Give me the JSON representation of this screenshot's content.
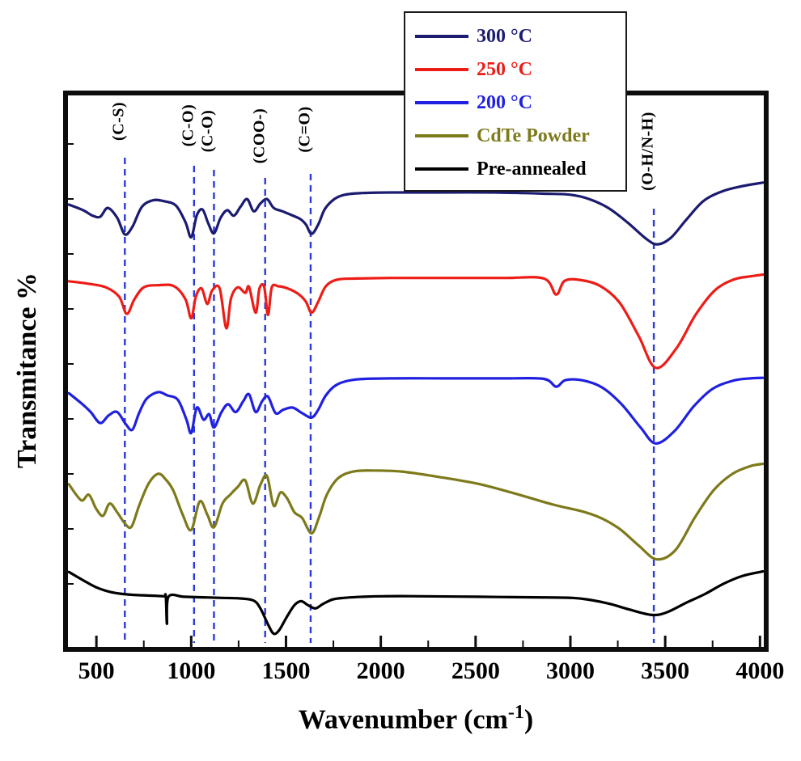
{
  "figure": {
    "y_axis_label": "Transmitance %",
    "x_axis_label": {
      "prefix": "Wavenumber (cm",
      "superscript": "-1",
      "suffix": ")"
    }
  },
  "legend": {
    "items": [
      {
        "label": "300 °C",
        "color": "#1b1b70"
      },
      {
        "label": "250 °C",
        "color": "#ed1c16"
      },
      {
        "label": "200 °C",
        "color": "#2020e0"
      },
      {
        "label": "CdTe Powder",
        "color": "#7d7a1c"
      },
      {
        "label": "Pre-annealed",
        "color": "#000000"
      }
    ]
  },
  "chart_data": {
    "type": "line",
    "title": "",
    "xlabel": "Wavenumber (cm-1)",
    "ylabel": "Transmitance %",
    "xlim": [
      350,
      4020
    ],
    "x_ticks": [
      500,
      1000,
      1500,
      2000,
      2500,
      3000,
      3500,
      4000
    ],
    "x_minor_ticks": [
      750,
      1250,
      1750,
      2250,
      2750,
      3250,
      3750
    ],
    "grid": false,
    "legend_position": "top-center",
    "guide_color": "#2a3ada",
    "frame_color": "#0d0d0d",
    "annotations": [
      {
        "text": "(C-S)",
        "wavenumber": 650,
        "label_center_y": 32,
        "line_top": 77
      },
      {
        "text": "(C-O)",
        "wavenumber": 1015,
        "label_center_y": 37,
        "line_top": 87
      },
      {
        "text": "(C-O)",
        "wavenumber": 1120,
        "label_center_y": 44,
        "line_top": 92
      },
      {
        "text": "(COO-)",
        "wavenumber": 1390,
        "label_center_y": 50,
        "line_top": 102
      },
      {
        "text": "(C=O)",
        "wavenumber": 1630,
        "label_center_y": 42,
        "line_top": 97
      },
      {
        "text": "(O-H/N-H)",
        "wavenumber": 3440,
        "label_center_y": 69,
        "line_top": 140
      }
    ],
    "series": [
      {
        "name": "300 °C",
        "color": "#1b1b70",
        "points": [
          [
            355,
            80.2
          ],
          [
            430,
            79.2
          ],
          [
            480,
            78.2
          ],
          [
            520,
            78.0
          ],
          [
            560,
            79.6
          ],
          [
            610,
            77.8
          ],
          [
            650,
            74.8
          ],
          [
            690,
            76.2
          ],
          [
            740,
            79.8
          ],
          [
            800,
            81.0
          ],
          [
            860,
            80.8
          ],
          [
            920,
            80.0
          ],
          [
            970,
            77.0
          ],
          [
            1000,
            74.3
          ],
          [
            1030,
            78.3
          ],
          [
            1060,
            79.3
          ],
          [
            1090,
            76.8
          ],
          [
            1120,
            75.0
          ],
          [
            1155,
            77.8
          ],
          [
            1190,
            79.2
          ],
          [
            1225,
            78.2
          ],
          [
            1260,
            79.8
          ],
          [
            1295,
            81.2
          ],
          [
            1330,
            79.0
          ],
          [
            1365,
            80.4
          ],
          [
            1400,
            81.2
          ],
          [
            1435,
            79.6
          ],
          [
            1480,
            79.0
          ],
          [
            1530,
            78.3
          ],
          [
            1575,
            77.6
          ],
          [
            1605,
            76.6
          ],
          [
            1635,
            74.9
          ],
          [
            1670,
            76.6
          ],
          [
            1705,
            79.4
          ],
          [
            1755,
            81.2
          ],
          [
            1810,
            82.0
          ],
          [
            1900,
            82.3
          ],
          [
            2050,
            82.4
          ],
          [
            2300,
            82.4
          ],
          [
            2600,
            82.4
          ],
          [
            2850,
            82.2
          ],
          [
            3000,
            82.0
          ],
          [
            3100,
            81.2
          ],
          [
            3200,
            79.6
          ],
          [
            3300,
            77.0
          ],
          [
            3400,
            74.0
          ],
          [
            3460,
            73.0
          ],
          [
            3530,
            74.2
          ],
          [
            3610,
            77.4
          ],
          [
            3700,
            80.8
          ],
          [
            3800,
            82.6
          ],
          [
            3900,
            83.5
          ],
          [
            4015,
            84.2
          ]
        ]
      },
      {
        "name": "250 °C",
        "color": "#ed1c16",
        "points": [
          [
            355,
            66.3
          ],
          [
            450,
            65.9
          ],
          [
            550,
            65.2
          ],
          [
            620,
            63.5
          ],
          [
            660,
            60.4
          ],
          [
            700,
            63.0
          ],
          [
            750,
            65.2
          ],
          [
            830,
            65.6
          ],
          [
            910,
            65.4
          ],
          [
            970,
            63.0
          ],
          [
            1000,
            59.6
          ],
          [
            1025,
            63.6
          ],
          [
            1055,
            65.0
          ],
          [
            1085,
            62.2
          ],
          [
            1110,
            64.6
          ],
          [
            1150,
            65.0
          ],
          [
            1185,
            57.8
          ],
          [
            1210,
            63.2
          ],
          [
            1245,
            65.2
          ],
          [
            1285,
            64.2
          ],
          [
            1305,
            65.3
          ],
          [
            1340,
            60.6
          ],
          [
            1360,
            65.0
          ],
          [
            1385,
            65.3
          ],
          [
            1405,
            60.2
          ],
          [
            1425,
            65.2
          ],
          [
            1460,
            65.4
          ],
          [
            1510,
            65.0
          ],
          [
            1565,
            64.0
          ],
          [
            1605,
            62.6
          ],
          [
            1635,
            60.6
          ],
          [
            1670,
            62.6
          ],
          [
            1710,
            65.4
          ],
          [
            1770,
            66.6
          ],
          [
            1870,
            66.8
          ],
          [
            2050,
            66.9
          ],
          [
            2350,
            66.9
          ],
          [
            2650,
            66.9
          ],
          [
            2860,
            66.8
          ],
          [
            2925,
            63.9
          ],
          [
            2970,
            66.4
          ],
          [
            3060,
            66.5
          ],
          [
            3160,
            65.4
          ],
          [
            3260,
            62.4
          ],
          [
            3360,
            56.4
          ],
          [
            3450,
            50.6
          ],
          [
            3560,
            54.2
          ],
          [
            3660,
            60.2
          ],
          [
            3760,
            64.6
          ],
          [
            3860,
            66.6
          ],
          [
            3950,
            67.2
          ],
          [
            4015,
            67.5
          ]
        ]
      },
      {
        "name": "200 °C",
        "color": "#2020e0",
        "points": [
          [
            355,
            46.0
          ],
          [
            420,
            44.2
          ],
          [
            470,
            42.6
          ],
          [
            520,
            40.6
          ],
          [
            565,
            42.0
          ],
          [
            610,
            42.6
          ],
          [
            655,
            40.4
          ],
          [
            690,
            39.4
          ],
          [
            725,
            42.4
          ],
          [
            765,
            45.0
          ],
          [
            825,
            46.2
          ],
          [
            875,
            45.6
          ],
          [
            930,
            44.8
          ],
          [
            975,
            41.2
          ],
          [
            1000,
            38.8
          ],
          [
            1030,
            43.4
          ],
          [
            1065,
            41.2
          ],
          [
            1095,
            42.2
          ],
          [
            1120,
            39.8
          ],
          [
            1160,
            42.6
          ],
          [
            1195,
            44.0
          ],
          [
            1235,
            42.6
          ],
          [
            1275,
            44.6
          ],
          [
            1305,
            45.8
          ],
          [
            1340,
            42.6
          ],
          [
            1375,
            44.6
          ],
          [
            1405,
            45.4
          ],
          [
            1445,
            42.4
          ],
          [
            1485,
            43.0
          ],
          [
            1535,
            43.4
          ],
          [
            1585,
            42.4
          ],
          [
            1635,
            41.6
          ],
          [
            1670,
            43.0
          ],
          [
            1710,
            45.6
          ],
          [
            1770,
            47.6
          ],
          [
            1870,
            48.5
          ],
          [
            2050,
            48.7
          ],
          [
            2350,
            48.7
          ],
          [
            2650,
            48.7
          ],
          [
            2860,
            48.6
          ],
          [
            2925,
            47.2
          ],
          [
            2975,
            48.4
          ],
          [
            3070,
            48.3
          ],
          [
            3170,
            47.0
          ],
          [
            3270,
            44.0
          ],
          [
            3370,
            39.8
          ],
          [
            3450,
            36.9
          ],
          [
            3550,
            39.2
          ],
          [
            3650,
            43.6
          ],
          [
            3750,
            46.8
          ],
          [
            3860,
            48.3
          ],
          [
            3950,
            48.7
          ],
          [
            4015,
            48.8
          ]
        ]
      },
      {
        "name": "CdTe Powder",
        "color": "#7d7a1c",
        "points": [
          [
            355,
            29.5
          ],
          [
            420,
            26.6
          ],
          [
            460,
            27.6
          ],
          [
            500,
            25.0
          ],
          [
            535,
            23.8
          ],
          [
            570,
            26.0
          ],
          [
            610,
            24.4
          ],
          [
            650,
            22.4
          ],
          [
            685,
            21.8
          ],
          [
            725,
            25.6
          ],
          [
            775,
            29.6
          ],
          [
            825,
            31.4
          ],
          [
            865,
            30.4
          ],
          [
            905,
            28.4
          ],
          [
            955,
            24.0
          ],
          [
            1000,
            21.2
          ],
          [
            1045,
            26.4
          ],
          [
            1085,
            24.0
          ],
          [
            1120,
            21.7
          ],
          [
            1165,
            26.0
          ],
          [
            1205,
            27.6
          ],
          [
            1245,
            29.0
          ],
          [
            1285,
            30.2
          ],
          [
            1325,
            26.0
          ],
          [
            1365,
            29.4
          ],
          [
            1400,
            31.0
          ],
          [
            1435,
            25.6
          ],
          [
            1470,
            28.0
          ],
          [
            1505,
            27.0
          ],
          [
            1545,
            24.4
          ],
          [
            1585,
            23.4
          ],
          [
            1635,
            20.6
          ],
          [
            1675,
            23.6
          ],
          [
            1715,
            27.6
          ],
          [
            1775,
            30.6
          ],
          [
            1855,
            31.8
          ],
          [
            1960,
            32.0
          ],
          [
            2110,
            31.8
          ],
          [
            2310,
            30.8
          ],
          [
            2510,
            29.6
          ],
          [
            2710,
            27.8
          ],
          [
            2910,
            25.8
          ],
          [
            3060,
            24.6
          ],
          [
            3160,
            23.4
          ],
          [
            3260,
            21.4
          ],
          [
            3360,
            18.4
          ],
          [
            3455,
            15.9
          ],
          [
            3555,
            17.6
          ],
          [
            3655,
            23.4
          ],
          [
            3755,
            28.4
          ],
          [
            3855,
            31.4
          ],
          [
            3950,
            32.8
          ],
          [
            4015,
            33.2
          ]
        ]
      },
      {
        "name": "Pre-annealed",
        "color": "#000000",
        "points": [
          [
            355,
            13.6
          ],
          [
            430,
            12.1
          ],
          [
            500,
            10.8
          ],
          [
            570,
            10.0
          ],
          [
            640,
            9.6
          ],
          [
            720,
            9.4
          ],
          [
            800,
            9.3
          ],
          [
            855,
            9.2
          ],
          [
            866,
            9.2
          ],
          [
            872,
            4.2
          ],
          [
            880,
            9.1
          ],
          [
            960,
            9.1
          ],
          [
            1060,
            9.0
          ],
          [
            1160,
            8.9
          ],
          [
            1260,
            8.8
          ],
          [
            1330,
            8.4
          ],
          [
            1365,
            7.0
          ],
          [
            1405,
            4.1
          ],
          [
            1435,
            2.4
          ],
          [
            1465,
            3.1
          ],
          [
            1505,
            5.5
          ],
          [
            1545,
            7.6
          ],
          [
            1580,
            8.3
          ],
          [
            1615,
            7.6
          ],
          [
            1655,
            7.0
          ],
          [
            1695,
            7.8
          ],
          [
            1745,
            8.6
          ],
          [
            1805,
            8.9
          ],
          [
            1905,
            9.1
          ],
          [
            2010,
            9.2
          ],
          [
            2210,
            9.2
          ],
          [
            2510,
            9.1
          ],
          [
            2810,
            9.0
          ],
          [
            3010,
            8.9
          ],
          [
            3110,
            8.5
          ],
          [
            3210,
            7.8
          ],
          [
            3310,
            6.8
          ],
          [
            3430,
            5.8
          ],
          [
            3510,
            6.3
          ],
          [
            3610,
            8.0
          ],
          [
            3710,
            9.6
          ],
          [
            3810,
            11.5
          ],
          [
            3910,
            12.9
          ],
          [
            4015,
            13.7
          ]
        ]
      }
    ]
  }
}
